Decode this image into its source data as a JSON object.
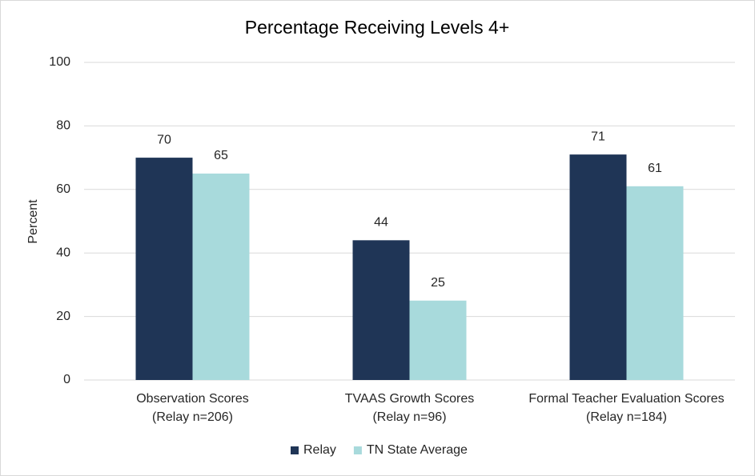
{
  "chart_data": {
    "type": "bar",
    "title": "Percentage Receiving Levels 4+",
    "y_label": "Percent",
    "categories": [
      [
        "Observation Scores",
        "(Relay n=206)"
      ],
      [
        "TVAAS Growth Scores",
        "(Relay n=96)"
      ],
      [
        "Formal Teacher Evaluation Scores",
        "(Relay n=184)"
      ]
    ],
    "series": [
      {
        "name": "Relay",
        "color": "#1f3556",
        "values": [
          70,
          44,
          71
        ]
      },
      {
        "name": "TN State Average",
        "color": "#a8dadc",
        "values": [
          65,
          25,
          61
        ]
      }
    ],
    "ylim": [
      0,
      100
    ],
    "yticks": [
      0,
      20,
      40,
      60,
      80,
      100
    ],
    "grid": true,
    "legend": "bottom"
  }
}
